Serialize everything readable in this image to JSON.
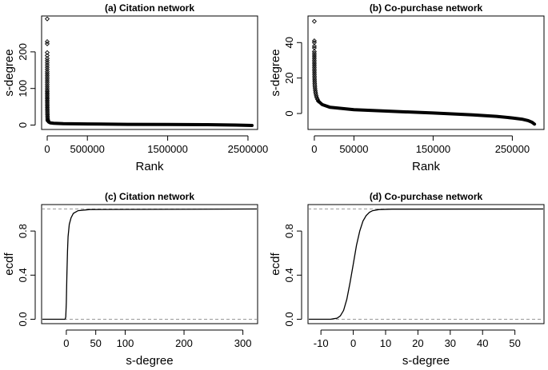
{
  "chart_data": [
    {
      "panel": "a",
      "type": "scatter",
      "title": "(a) Citation network",
      "xlabel": "Rank",
      "ylabel": "s-degree",
      "xlim": [
        -70000,
        2620000
      ],
      "ylim": [
        -12,
        298
      ],
      "xticks": [
        0,
        500000,
        1500000,
        2500000
      ],
      "xticklabels": [
        "0",
        "500000",
        "1500000",
        "2500000"
      ],
      "yticks": [
        0,
        100,
        200
      ],
      "yticklabels": [
        "0",
        "100",
        "200"
      ],
      "points": [
        [
          1,
          290
        ],
        [
          2,
          228
        ],
        [
          3,
          222
        ],
        [
          4,
          198
        ],
        [
          5,
          190
        ],
        [
          6,
          182
        ],
        [
          8,
          176
        ],
        [
          10,
          170
        ],
        [
          12,
          164
        ],
        [
          15,
          158
        ],
        [
          18,
          152
        ],
        [
          22,
          146
        ],
        [
          26,
          141
        ],
        [
          30,
          136
        ],
        [
          36,
          131
        ],
        [
          42,
          126
        ],
        [
          50,
          121
        ],
        [
          60,
          116
        ],
        [
          70,
          111
        ],
        [
          85,
          106
        ],
        [
          100,
          101
        ],
        [
          120,
          96
        ],
        [
          140,
          92
        ],
        [
          170,
          88
        ],
        [
          200,
          84
        ],
        [
          240,
          80
        ],
        [
          290,
          76
        ],
        [
          350,
          72
        ],
        [
          420,
          68
        ],
        [
          500,
          64
        ],
        [
          600,
          60
        ],
        [
          720,
          56
        ],
        [
          860,
          52
        ],
        [
          1030,
          48
        ],
        [
          1240,
          44
        ],
        [
          1500,
          40
        ],
        [
          1800,
          36
        ],
        [
          2200,
          32
        ],
        [
          2700,
          28
        ],
        [
          3400,
          24
        ],
        [
          4300,
          20
        ],
        [
          5500,
          16
        ],
        [
          7500,
          13
        ],
        [
          10000,
          11
        ]
      ],
      "curve": [
        [
          10000,
          11
        ],
        [
          20000,
          8
        ],
        [
          40000,
          6
        ],
        [
          80000,
          5
        ],
        [
          200000,
          4
        ],
        [
          500000,
          3
        ],
        [
          1000000,
          2
        ],
        [
          1500000,
          1.5
        ],
        [
          2000000,
          1
        ],
        [
          2350000,
          0
        ],
        [
          2550000,
          -1
        ]
      ]
    },
    {
      "panel": "b",
      "type": "scatter",
      "title": "(b) Co-purchase network",
      "xlabel": "Rank",
      "ylabel": "s-degree",
      "xlim": [
        -8000,
        290000
      ],
      "ylim": [
        -9,
        55
      ],
      "xticks": [
        0,
        50000,
        150000,
        250000
      ],
      "xticklabels": [
        "0",
        "50000",
        "150000",
        "250000"
      ],
      "yticks": [
        0,
        20,
        40
      ],
      "yticklabels": [
        "0",
        "20",
        "40"
      ],
      "points": [
        [
          1,
          52
        ],
        [
          2,
          41
        ],
        [
          3,
          40
        ],
        [
          4,
          38
        ],
        [
          5,
          37
        ],
        [
          7,
          35
        ],
        [
          9,
          34
        ],
        [
          12,
          33
        ],
        [
          15,
          32
        ],
        [
          19,
          31
        ],
        [
          24,
          30
        ],
        [
          30,
          29
        ],
        [
          38,
          28
        ],
        [
          48,
          27
        ],
        [
          60,
          26
        ],
        [
          75,
          25
        ],
        [
          95,
          24
        ],
        [
          120,
          23
        ],
        [
          150,
          22
        ],
        [
          190,
          21
        ],
        [
          240,
          20
        ],
        [
          300,
          19
        ],
        [
          380,
          18
        ],
        [
          480,
          17
        ],
        [
          600,
          16
        ],
        [
          760,
          15
        ],
        [
          960,
          14
        ],
        [
          1200,
          13
        ],
        [
          1500,
          12
        ],
        [
          1900,
          11
        ],
        [
          2400,
          10
        ],
        [
          3000,
          9
        ],
        [
          4000,
          8
        ],
        [
          5000,
          7
        ]
      ],
      "curve": [
        [
          5000,
          7
        ],
        [
          10000,
          5
        ],
        [
          20000,
          3.5
        ],
        [
          50000,
          2.2
        ],
        [
          100000,
          1.2
        ],
        [
          150000,
          0.3
        ],
        [
          200000,
          -0.8
        ],
        [
          230000,
          -1.6
        ],
        [
          250000,
          -2.5
        ],
        [
          262000,
          -3.2
        ],
        [
          270000,
          -4
        ],
        [
          275000,
          -5
        ],
        [
          278000,
          -6
        ]
      ]
    },
    {
      "panel": "c",
      "type": "line",
      "title": "(c) Citation network",
      "xlabel": "s-degree",
      "ylabel": "ecdf",
      "xlim": [
        -42,
        325
      ],
      "ylim": [
        -0.04,
        1.04
      ],
      "xticks": [
        0,
        50,
        100,
        200,
        300
      ],
      "xticklabels": [
        "0",
        "50",
        "100",
        "200",
        "300"
      ],
      "yticks": [
        0.0,
        0.4,
        0.8
      ],
      "yticklabels": [
        "0.0",
        "0.4",
        "0.8"
      ],
      "hlines": [
        0,
        1
      ],
      "curve": [
        [
          -42,
          0
        ],
        [
          -2,
          0
        ],
        [
          -1,
          0.02
        ],
        [
          0,
          0.15
        ],
        [
          1,
          0.4
        ],
        [
          2,
          0.62
        ],
        [
          3,
          0.75
        ],
        [
          5,
          0.86
        ],
        [
          8,
          0.92
        ],
        [
          12,
          0.96
        ],
        [
          20,
          0.985
        ],
        [
          40,
          0.995
        ],
        [
          325,
          1
        ]
      ]
    },
    {
      "panel": "d",
      "type": "line",
      "title": "(d) Co-purchase network",
      "xlabel": "s-degree",
      "ylabel": "ecdf",
      "xlim": [
        -14,
        59
      ],
      "ylim": [
        -0.04,
        1.04
      ],
      "xticks": [
        -10,
        0,
        10,
        20,
        30,
        40,
        50
      ],
      "xticklabels": [
        "-10",
        "0",
        "10",
        "20",
        "30",
        "40",
        "50"
      ],
      "yticks": [
        0.0,
        0.4,
        0.8
      ],
      "yticklabels": [
        "0.0",
        "0.4",
        "0.8"
      ],
      "hlines": [
        0,
        1
      ],
      "curve": [
        [
          -14,
          0
        ],
        [
          -7,
          0
        ],
        [
          -6,
          0.005
        ],
        [
          -5,
          0.01
        ],
        [
          -4,
          0.03
        ],
        [
          -3,
          0.08
        ],
        [
          -2,
          0.18
        ],
        [
          -1,
          0.33
        ],
        [
          0,
          0.5
        ],
        [
          1,
          0.67
        ],
        [
          2,
          0.8
        ],
        [
          3,
          0.89
        ],
        [
          4,
          0.94
        ],
        [
          5,
          0.97
        ],
        [
          6,
          0.985
        ],
        [
          8,
          0.995
        ],
        [
          12,
          0.999
        ],
        [
          59,
          1
        ]
      ]
    }
  ]
}
